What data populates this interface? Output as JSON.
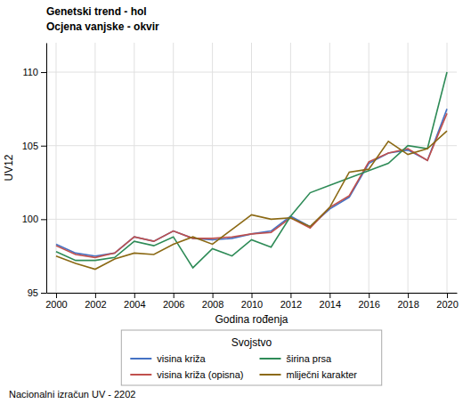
{
  "chart_data": {
    "type": "line",
    "title": "Genetski trend - hol",
    "subtitle": "Ocjena vanjske - okvir",
    "x_label": "Godina rođenja",
    "y_label": "UV12",
    "annotations": [
      "Nacionalni izračun UV - 2202"
    ],
    "legend_title": "Svojstvo",
    "legend": "bottom",
    "grid": true,
    "xlim": [
      1999.5,
      2020.5
    ],
    "ylim": [
      95,
      112
    ],
    "xticks": [
      2000,
      2002,
      2004,
      2006,
      2008,
      2010,
      2012,
      2014,
      2016,
      2018,
      2020
    ],
    "yticks": [
      95,
      100,
      105,
      110
    ],
    "x": [
      2000,
      2001,
      2002,
      2003,
      2004,
      2005,
      2006,
      2007,
      2008,
      2009,
      2010,
      2011,
      2012,
      2013,
      2014,
      2015,
      2016,
      2017,
      2018,
      2019,
      2020
    ],
    "series": [
      {
        "name": "visina križa",
        "color": "#4472C4",
        "values": [
          98.3,
          97.7,
          97.5,
          97.7,
          98.8,
          98.5,
          99.2,
          98.7,
          98.6,
          98.7,
          99.0,
          99.2,
          100.2,
          99.5,
          100.7,
          101.5,
          103.8,
          104.5,
          104.7,
          104.0,
          107.5
        ]
      },
      {
        "name": "visina križa (opisna)",
        "color": "#C0504D",
        "values": [
          98.2,
          97.6,
          97.4,
          97.7,
          98.8,
          98.5,
          99.2,
          98.7,
          98.7,
          98.8,
          99.0,
          99.1,
          100.1,
          99.4,
          100.8,
          101.6,
          103.9,
          104.5,
          104.8,
          104.0,
          107.2
        ]
      },
      {
        "name": "širina prsa",
        "color": "#2E8B57",
        "values": [
          97.8,
          97.2,
          97.2,
          97.4,
          98.5,
          98.2,
          98.8,
          96.7,
          98.0,
          97.5,
          98.6,
          98.1,
          100.2,
          101.8,
          102.3,
          102.8,
          103.3,
          103.8,
          105.0,
          104.8,
          110.0
        ]
      },
      {
        "name": "mliječni karakter",
        "color": "#8B6914",
        "values": [
          97.5,
          97.0,
          96.6,
          97.3,
          97.7,
          97.6,
          98.3,
          98.8,
          98.3,
          99.3,
          100.3,
          100.0,
          100.1,
          99.5,
          100.8,
          103.2,
          103.4,
          105.3,
          104.4,
          104.8,
          106.0
        ]
      }
    ]
  }
}
